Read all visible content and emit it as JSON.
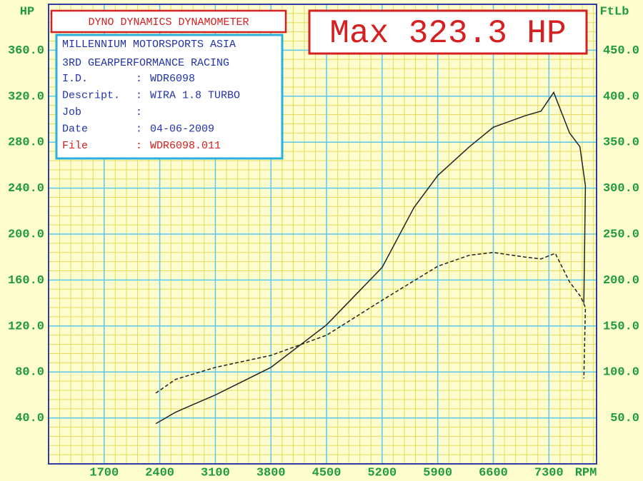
{
  "chart_data": {
    "type": "line",
    "title": "DYNO DYNAMICS DYNAMOMETER",
    "annotation": "Max 323.3 HP",
    "y_label": "HP",
    "y2_label": "FtLb",
    "x_label": "RPM",
    "xlim": [
      1000,
      7900
    ],
    "xticks": [
      1700,
      2400,
      3100,
      3800,
      4500,
      5200,
      5900,
      6600,
      7300
    ],
    "ylim": [
      0,
      400
    ],
    "yticks": [
      {
        "value": 40,
        "label": "40.0"
      },
      {
        "value": 80,
        "label": "80.0"
      },
      {
        "value": 120,
        "label": "120.0"
      },
      {
        "value": 160,
        "label": "160.0"
      },
      {
        "value": 200,
        "label": "200.0"
      },
      {
        "value": 240,
        "label": "240.0"
      },
      {
        "value": 280,
        "label": "280.0"
      },
      {
        "value": 320,
        "label": "320.0"
      },
      {
        "value": 360,
        "label": "360.0"
      }
    ],
    "y2lim": [
      0,
      500
    ],
    "y2ticks": [
      {
        "value": 50,
        "label": "50.0"
      },
      {
        "value": 100,
        "label": "100.0"
      },
      {
        "value": 150,
        "label": "150.0"
      },
      {
        "value": 200,
        "label": "200.0"
      },
      {
        "value": 250,
        "label": "250.0"
      },
      {
        "value": 300,
        "label": "300.0"
      },
      {
        "value": 350,
        "label": "350.0"
      },
      {
        "value": 400,
        "label": "400.0"
      },
      {
        "value": 450,
        "label": "450.0"
      }
    ],
    "grid": true,
    "series": [
      {
        "color": "#222222",
        "dashed": false,
        "x": [
          2350,
          2600,
          3100,
          3800,
          4500,
          5200,
          5600,
          5900,
          6300,
          6600,
          7000,
          7200,
          7360,
          7560,
          7690,
          7760,
          7740
        ],
        "values": [
          35,
          45,
          60,
          84,
          121,
          171,
          223,
          251,
          276,
          293,
          303,
          307,
          323.3,
          288,
          276,
          242,
          140
        ]
      },
      {
        "color": "#222222",
        "dashed": true,
        "axis": "y2",
        "x": [
          2350,
          2600,
          3100,
          3800,
          4500,
          5200,
          5900,
          6300,
          6600,
          7000,
          7200,
          7380,
          7560,
          7700,
          7760,
          7740
        ],
        "values": [
          77,
          92,
          105,
          118,
          140,
          178,
          215,
          227,
          230,
          225,
          223,
          229,
          198,
          182,
          170,
          93
        ]
      }
    ]
  },
  "info": {
    "lines": [
      "MILLENNIUM MOTORSPORTS ASIA",
      "3RD GEARPERFORMANCE RACING"
    ],
    "rows": [
      [
        "I.D.",
        ":",
        "WDR6098"
      ],
      [
        "Descript.",
        ":",
        "WIRA 1.8 TURBO"
      ],
      [
        "Job",
        ":"
      ],
      [
        "Date",
        ":",
        "04-06-2009"
      ],
      [
        "File",
        ":",
        "WDR6098.011"
      ]
    ]
  }
}
